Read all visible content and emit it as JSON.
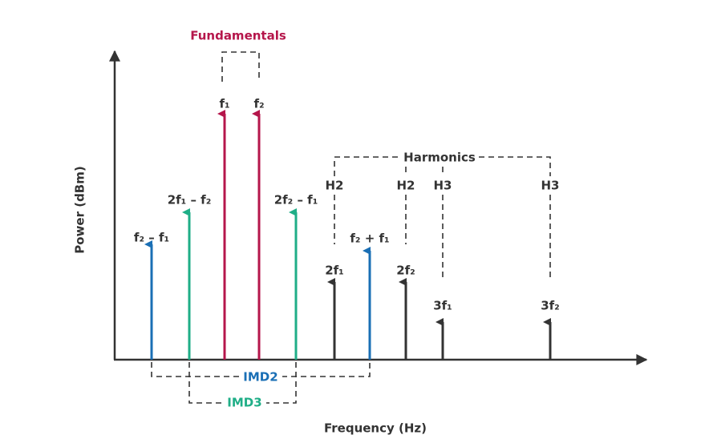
{
  "title": "Fundamentals",
  "harmonics_label": "Harmonics",
  "imd2_label": "IMD2",
  "imd3_label": "IMD3",
  "y_axis_label": "Power (dBm)",
  "x_axis_label": "Frequency (Hz)",
  "tones": [
    "f₂ – f₁",
    "2f₁ – f₂",
    "f₁",
    "f₂",
    "2f₂ – f₁",
    "2f₁",
    "f₂ + f₁",
    "2f₂",
    "3f₁",
    "3f₂"
  ],
  "harmonic_tags": [
    "H2",
    "H2",
    "H3",
    "H3"
  ]
}
